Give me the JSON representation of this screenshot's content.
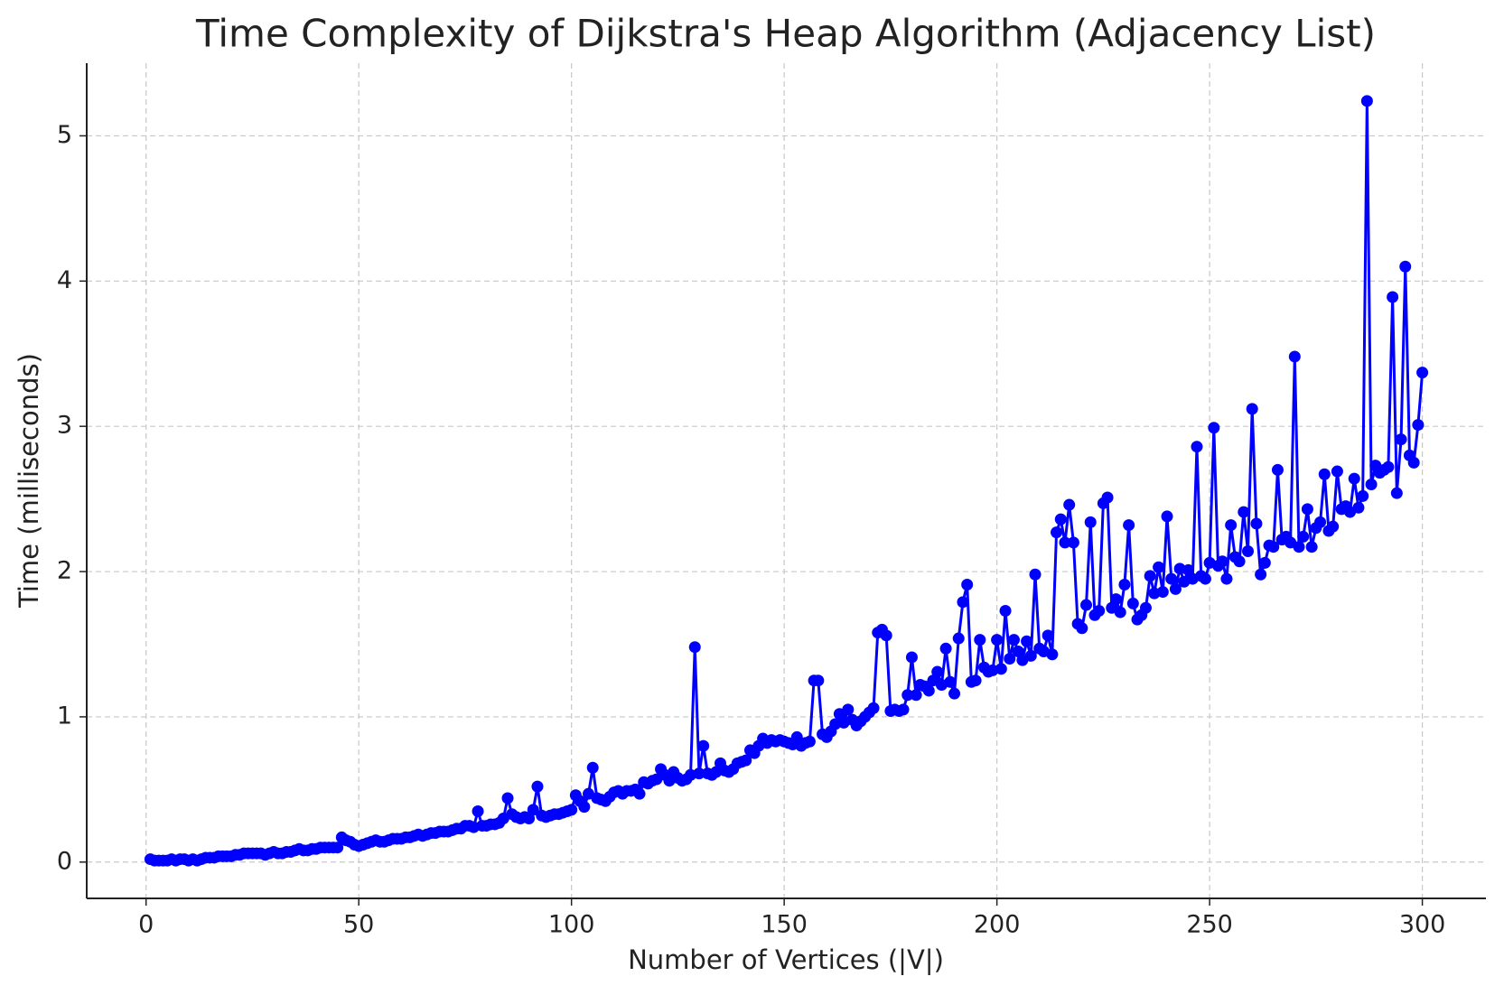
{
  "chart_data": {
    "type": "line",
    "title": "Time Complexity of Dijkstra's Heap Algorithm (Adjacency List)",
    "x_label": "Number of Vertices (|V|)",
    "y_label": "Time (milliseconds)",
    "x": [
      1,
      2,
      3,
      4,
      5,
      6,
      7,
      8,
      9,
      10,
      11,
      12,
      13,
      14,
      15,
      16,
      17,
      18,
      19,
      20,
      21,
      22,
      23,
      24,
      25,
      26,
      27,
      28,
      29,
      30,
      31,
      32,
      33,
      34,
      35,
      36,
      37,
      38,
      39,
      40,
      41,
      42,
      43,
      44,
      45,
      46,
      47,
      48,
      49,
      50,
      51,
      52,
      53,
      54,
      55,
      56,
      57,
      58,
      59,
      60,
      61,
      62,
      63,
      64,
      65,
      66,
      67,
      68,
      69,
      70,
      71,
      72,
      73,
      74,
      75,
      76,
      77,
      78,
      79,
      80,
      81,
      82,
      83,
      84,
      85,
      86,
      87,
      88,
      89,
      90,
      91,
      92,
      93,
      94,
      95,
      96,
      97,
      98,
      99,
      100,
      101,
      102,
      103,
      104,
      105,
      106,
      107,
      108,
      109,
      110,
      111,
      112,
      113,
      114,
      115,
      116,
      117,
      118,
      119,
      120,
      121,
      122,
      123,
      124,
      125,
      126,
      127,
      128,
      129,
      130,
      131,
      132,
      133,
      134,
      135,
      136,
      137,
      138,
      139,
      140,
      141,
      142,
      143,
      144,
      145,
      146,
      147,
      148,
      149,
      150,
      151,
      152,
      153,
      154,
      155,
      156,
      157,
      158,
      159,
      160,
      161,
      162,
      163,
      164,
      165,
      166,
      167,
      168,
      169,
      170,
      171,
      172,
      173,
      174,
      175,
      176,
      177,
      178,
      179,
      180,
      181,
      182,
      183,
      184,
      185,
      186,
      187,
      188,
      189,
      190,
      191,
      192,
      193,
      194,
      195,
      196,
      197,
      198,
      199,
      200,
      201,
      202,
      203,
      204,
      205,
      206,
      207,
      208,
      209,
      210,
      211,
      212,
      213,
      214,
      215,
      216,
      217,
      218,
      219,
      220,
      221,
      222,
      223,
      224,
      225,
      226,
      227,
      228,
      229,
      230,
      231,
      232,
      233,
      234,
      235,
      236,
      237,
      238,
      239,
      240,
      241,
      242,
      243,
      244,
      245,
      246,
      247,
      248,
      249,
      250,
      251,
      252,
      253,
      254,
      255,
      256,
      257,
      258,
      259,
      260,
      261,
      262,
      263,
      264,
      265,
      266,
      267,
      268,
      269,
      270,
      271,
      272,
      273,
      274,
      275,
      276,
      277,
      278,
      279,
      280,
      281,
      282,
      283,
      284,
      285,
      286,
      287,
      288,
      289,
      290,
      291,
      292,
      293,
      294,
      295,
      296,
      297,
      298,
      299,
      300
    ],
    "series": [
      {
        "color": "#0000ff",
        "values": [
          0.02,
          0.01,
          0.01,
          0.01,
          0.01,
          0.02,
          0.01,
          0.02,
          0.02,
          0.01,
          0.02,
          0.01,
          0.02,
          0.03,
          0.03,
          0.03,
          0.04,
          0.04,
          0.04,
          0.04,
          0.05,
          0.05,
          0.06,
          0.06,
          0.06,
          0.06,
          0.06,
          0.05,
          0.06,
          0.07,
          0.06,
          0.06,
          0.07,
          0.07,
          0.08,
          0.09,
          0.08,
          0.08,
          0.09,
          0.09,
          0.1,
          0.1,
          0.1,
          0.1,
          0.1,
          0.17,
          0.15,
          0.14,
          0.12,
          0.11,
          0.12,
          0.13,
          0.14,
          0.15,
          0.14,
          0.14,
          0.15,
          0.16,
          0.16,
          0.16,
          0.17,
          0.17,
          0.18,
          0.19,
          0.18,
          0.19,
          0.2,
          0.2,
          0.21,
          0.21,
          0.21,
          0.22,
          0.23,
          0.23,
          0.25,
          0.25,
          0.24,
          0.35,
          0.25,
          0.25,
          0.26,
          0.26,
          0.27,
          0.3,
          0.44,
          0.33,
          0.31,
          0.3,
          0.31,
          0.3,
          0.36,
          0.52,
          0.32,
          0.31,
          0.32,
          0.33,
          0.33,
          0.34,
          0.35,
          0.36,
          0.46,
          0.42,
          0.38,
          0.47,
          0.65,
          0.44,
          0.43,
          0.42,
          0.45,
          0.48,
          0.49,
          0.47,
          0.49,
          0.49,
          0.5,
          0.47,
          0.55,
          0.54,
          0.56,
          0.57,
          0.64,
          0.6,
          0.56,
          0.62,
          0.58,
          0.56,
          0.57,
          0.6,
          1.48,
          0.61,
          0.8,
          0.61,
          0.6,
          0.62,
          0.68,
          0.63,
          0.62,
          0.64,
          0.68,
          0.69,
          0.7,
          0.77,
          0.75,
          0.8,
          0.85,
          0.82,
          0.84,
          0.83,
          0.84,
          0.83,
          0.82,
          0.81,
          0.86,
          0.8,
          0.82,
          0.83,
          1.25,
          1.25,
          0.88,
          0.86,
          0.9,
          0.95,
          1.02,
          0.96,
          1.05,
          0.98,
          0.94,
          0.97,
          1.0,
          1.03,
          1.06,
          1.58,
          1.6,
          1.56,
          1.04,
          1.05,
          1.04,
          1.05,
          1.15,
          1.41,
          1.15,
          1.22,
          1.21,
          1.18,
          1.25,
          1.31,
          1.22,
          1.47,
          1.24,
          1.16,
          1.54,
          1.79,
          1.91,
          1.24,
          1.25,
          1.53,
          1.34,
          1.31,
          1.32,
          1.53,
          1.33,
          1.73,
          1.4,
          1.53,
          1.45,
          1.39,
          1.52,
          1.42,
          1.98,
          1.47,
          1.45,
          1.56,
          1.43,
          2.27,
          2.36,
          2.2,
          2.46,
          2.2,
          1.64,
          1.61,
          1.77,
          2.34,
          1.7,
          1.73,
          2.47,
          2.51,
          1.75,
          1.81,
          1.72,
          1.91,
          2.32,
          1.78,
          1.67,
          1.7,
          1.75,
          1.97,
          1.85,
          2.03,
          1.86,
          2.38,
          1.95,
          1.88,
          2.02,
          1.93,
          2.01,
          1.95,
          2.86,
          1.97,
          1.95,
          2.06,
          2.99,
          2.04,
          2.07,
          1.95,
          2.32,
          2.1,
          2.07,
          2.41,
          2.14,
          3.12,
          2.33,
          1.98,
          2.06,
          2.18,
          2.17,
          2.7,
          2.22,
          2.24,
          2.2,
          3.48,
          2.17,
          2.24,
          2.43,
          2.17,
          2.3,
          2.34,
          2.67,
          2.28,
          2.31,
          2.69,
          2.43,
          2.45,
          2.41,
          2.64,
          2.44,
          2.52,
          5.24,
          2.6,
          2.73,
          2.68,
          2.7,
          2.72,
          3.89,
          2.54,
          2.91,
          4.1,
          2.8,
          2.75,
          3.01,
          3.37
        ]
      }
    ],
    "xlim": [
      -13.95,
      314.95
    ],
    "xticks": [
      0,
      50,
      100,
      150,
      200,
      250,
      300
    ],
    "ylim": [
      -0.25,
      5.5
    ],
    "yticks": [
      0,
      1,
      2,
      3,
      4,
      5
    ],
    "grid": true,
    "marker": "circle"
  }
}
